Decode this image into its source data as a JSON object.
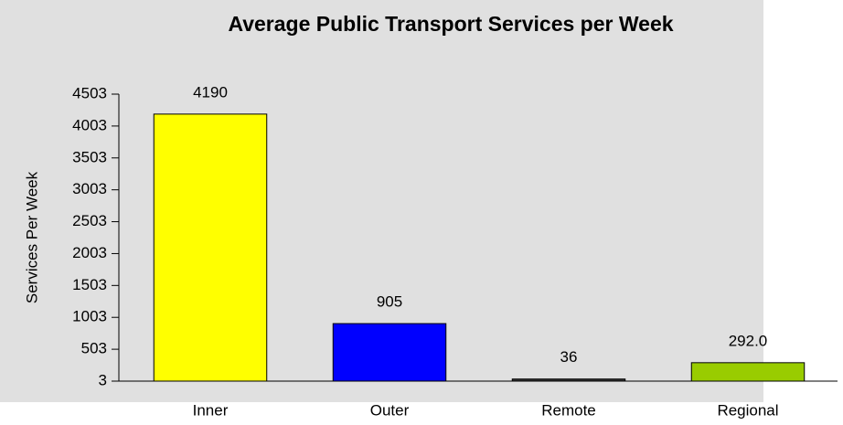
{
  "chart_data": {
    "type": "bar",
    "title": "Average Public Transport Services per Week",
    "y_label": "Services Per Week",
    "categories": [
      "Inner",
      "Outer",
      "Remote",
      "Regional"
    ],
    "values": [
      4190,
      905,
      36,
      292
    ],
    "value_labels": [
      "4190",
      "905",
      "36",
      "292.0"
    ],
    "colors": [
      "#ffff00",
      "#0000ff",
      "#333333",
      "#99cc00"
    ],
    "ylim": [
      3,
      4503
    ],
    "yticks": [
      3,
      503,
      1003,
      1503,
      2003,
      2503,
      3003,
      3503,
      4003,
      4503
    ]
  }
}
